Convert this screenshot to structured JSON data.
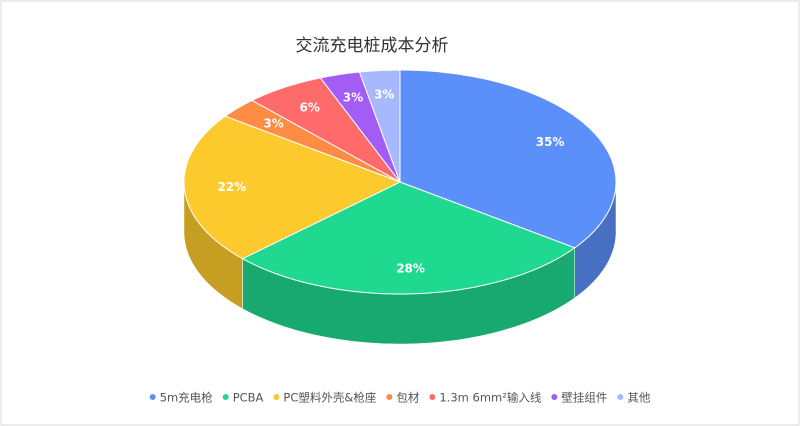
{
  "chart_data": {
    "type": "pie3d",
    "title": "交流充电桩成本分析",
    "categories": [
      "5m充电枪",
      "PCBA",
      "PC塑料外壳&枪座",
      "包材",
      "1.3m 6mm²输入线",
      "壁挂组件",
      "其他"
    ],
    "values": [
      35,
      28,
      22,
      3,
      6,
      3,
      3
    ],
    "value_labels": [
      "35%",
      "28%",
      "22%",
      "3%",
      "6%",
      "3%",
      "3%"
    ],
    "colors": [
      "#5b8ff9",
      "#1fd991",
      "#fcca2c",
      "#ff8c45",
      "#ff6b6b",
      "#a35cf5",
      "#a8b8ff"
    ],
    "legend": "bottom"
  }
}
